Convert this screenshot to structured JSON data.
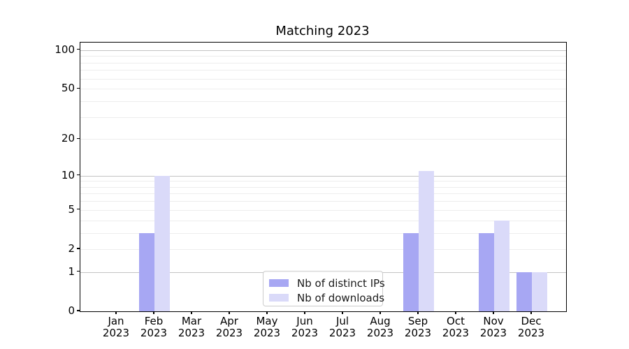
{
  "chart_data": {
    "type": "bar",
    "title": "Matching 2023",
    "categories": [
      "Jan",
      "Feb",
      "Mar",
      "Apr",
      "May",
      "Jun",
      "Jul",
      "Aug",
      "Sep",
      "Oct",
      "Nov",
      "Dec"
    ],
    "category_year_line": "2023",
    "series": [
      {
        "name": "Nb of distinct IPs",
        "color": "#a7a7f3",
        "values": [
          0,
          3,
          0,
          0,
          0,
          0,
          0,
          0,
          3,
          0,
          3,
          1
        ]
      },
      {
        "name": "Nb of downloads",
        "color": "#dadaf9",
        "values": [
          0,
          10,
          0,
          0,
          0,
          0,
          0,
          0,
          11,
          0,
          4,
          1
        ]
      }
    ],
    "xlabel": "",
    "ylabel": "",
    "yscale": "log1p",
    "ylim": [
      0,
      115
    ],
    "yticks": [
      0,
      1,
      2,
      5,
      10,
      20,
      50,
      100
    ],
    "major_gridlines": [
      1,
      10,
      100
    ],
    "minor_gridlines": [
      2,
      3,
      4,
      5,
      6,
      7,
      8,
      9,
      20,
      30,
      40,
      50,
      60,
      70,
      80,
      90
    ],
    "grid": "on",
    "legend_position": "lower center"
  }
}
